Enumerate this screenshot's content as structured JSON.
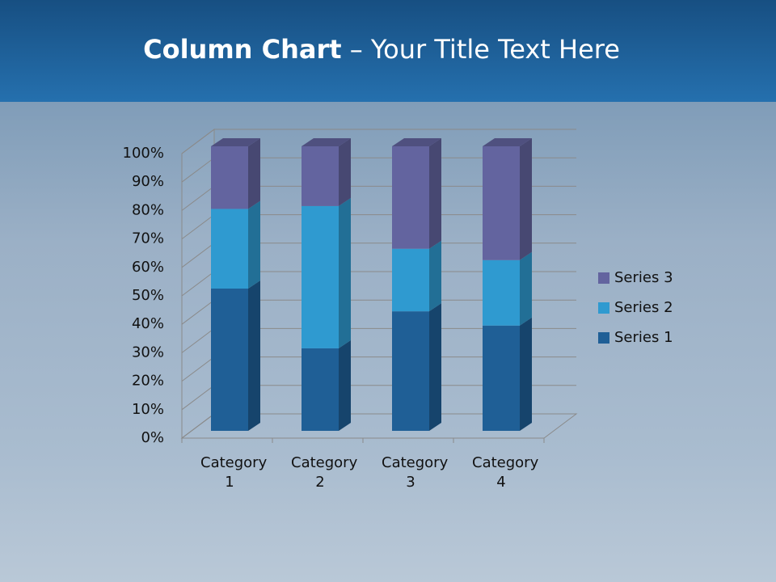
{
  "chart_data": {
    "type": "bar",
    "stacked": true,
    "title": {
      "bold": "Column Chart",
      "rest": "– Your Title Text Here"
    },
    "categories": [
      "Category 1",
      "Category 2",
      "Category 3",
      "Category 4"
    ],
    "series": [
      {
        "name": "Series 1",
        "color": "#1f5f96",
        "values": [
          50,
          29,
          42,
          37
        ]
      },
      {
        "name": "Series 2",
        "color": "#2f9ad0",
        "values": [
          28,
          50,
          22,
          23
        ]
      },
      {
        "name": "Series 3",
        "color": "#63649f",
        "values": [
          22,
          21,
          36,
          40
        ]
      }
    ],
    "ylim": [
      0,
      100
    ],
    "yticks": [
      {
        "value": 0,
        "label": "0%"
      },
      {
        "value": 10,
        "label": "10%"
      },
      {
        "value": 20,
        "label": "20%"
      },
      {
        "value": 30,
        "label": "30%"
      },
      {
        "value": 40,
        "label": "40%"
      },
      {
        "value": 50,
        "label": "50%"
      },
      {
        "value": 60,
        "label": "60%"
      },
      {
        "value": 70,
        "label": "70%"
      },
      {
        "value": 80,
        "label": "80%"
      },
      {
        "value": 90,
        "label": "90%"
      },
      {
        "value": 100,
        "label": "100%"
      }
    ],
    "grid": true
  }
}
